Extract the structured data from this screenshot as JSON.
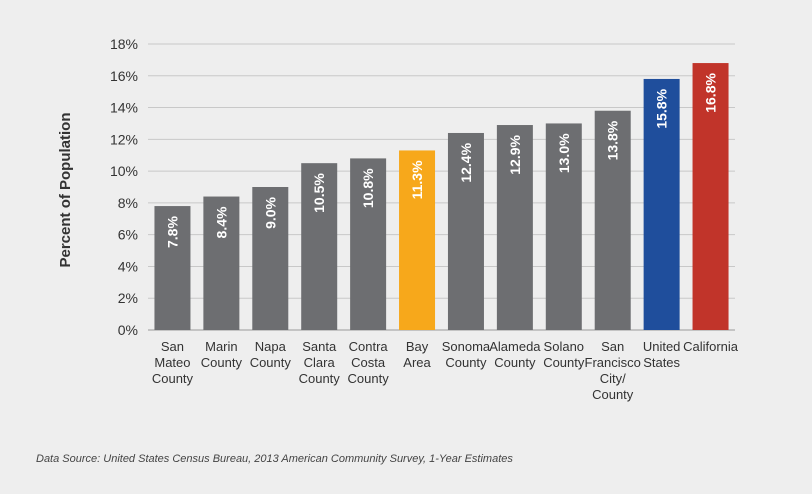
{
  "chart_data": {
    "type": "bar",
    "title": "",
    "xlabel": "",
    "ylabel": "Percent of Population",
    "ylim": [
      0,
      18
    ],
    "yticks": [
      "0%",
      "2%",
      "4%",
      "6%",
      "8%",
      "10%",
      "12%",
      "14%",
      "16%",
      "18%"
    ],
    "grid": true,
    "categories": [
      [
        "San",
        "Mateo",
        "County"
      ],
      [
        "Marin",
        "County"
      ],
      [
        "Napa",
        "County"
      ],
      [
        "Santa",
        "Clara",
        "County"
      ],
      [
        "Contra",
        "Costa",
        "County"
      ],
      [
        "Bay",
        "Area"
      ],
      [
        "Sonoma",
        "County"
      ],
      [
        "Alameda",
        "County"
      ],
      [
        "Solano",
        "County"
      ],
      [
        "San",
        "Francisco",
        "City/",
        "County"
      ],
      [
        "United",
        "States"
      ],
      [
        "California"
      ]
    ],
    "values": [
      7.8,
      8.4,
      9.0,
      10.5,
      10.8,
      11.3,
      12.4,
      12.9,
      13.0,
      13.8,
      15.8,
      16.8
    ],
    "value_labels": [
      "7.8%",
      "8.4%",
      "9.0%",
      "10.5%",
      "10.8%",
      "11.3%",
      "12.4%",
      "12.9%",
      "13.0%",
      "13.8%",
      "15.8%",
      "16.8%"
    ],
    "bar_colors": [
      "#6d6e71",
      "#6d6e71",
      "#6d6e71",
      "#6d6e71",
      "#6d6e71",
      "#f7a81b",
      "#6d6e71",
      "#6d6e71",
      "#6d6e71",
      "#6d6e71",
      "#1f4e9c",
      "#c1342a"
    ]
  },
  "source_note": "Data Source: United States Census Bureau, 2013 American Community Survey, 1-Year Estimates"
}
